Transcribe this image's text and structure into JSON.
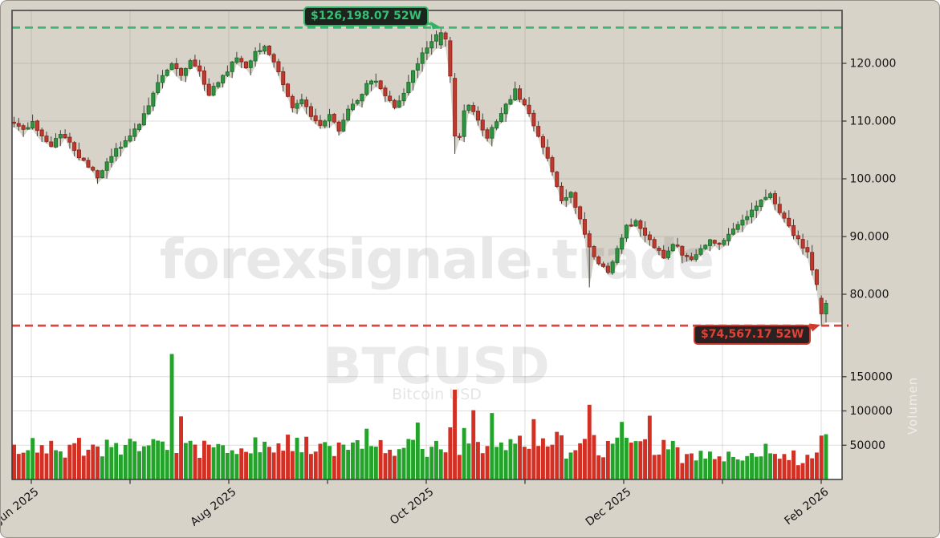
{
  "watermarks": {
    "main": "forexsignale.trade",
    "symbol": "BTCUSD",
    "subtitle": "Bitcoin USD",
    "side": "Volumen"
  },
  "chart_data": {
    "type": "candlestick",
    "symbol": "BTCUSD",
    "symbol_name": "Bitcoin USD",
    "timeframe": "daily",
    "n_candles": 176,
    "x_ticks": [
      "Jun 2025",
      "",
      "Aug 2025",
      "",
      "Oct 2025",
      "",
      "Dec 2025",
      "",
      "Feb 2026"
    ],
    "price_axis": {
      "ticks": [
        {
          "value": 120000,
          "label": "120.000"
        },
        {
          "value": 110000,
          "label": "110.000"
        },
        {
          "value": 100000,
          "label": "100.000"
        },
        {
          "value": 90000,
          "label": "90.000"
        },
        {
          "value": 80000,
          "label": "80.000"
        }
      ]
    },
    "volume_axis": {
      "ticks": [
        {
          "value": 150000,
          "label": "150000"
        },
        {
          "value": 100000,
          "label": "100000"
        },
        {
          "value": 50000,
          "label": "50000"
        }
      ],
      "side_label": "Volumen"
    },
    "levels": {
      "high_52w": {
        "value": 126198.07,
        "label": "$126,198.07 52W",
        "color": "#3bb872"
      },
      "low_52w": {
        "value": 74567.17,
        "label": "$74,567.17 52W",
        "color": "#dd453e"
      }
    },
    "close_anchors": [
      [
        0,
        109600
      ],
      [
        2,
        108300
      ],
      [
        4,
        109900
      ],
      [
        6,
        107500
      ],
      [
        8,
        105900
      ],
      [
        10,
        107600
      ],
      [
        12,
        106000
      ],
      [
        14,
        104000
      ],
      [
        16,
        102000
      ],
      [
        18,
        100400
      ],
      [
        20,
        103000
      ],
      [
        22,
        104900
      ],
      [
        24,
        106500
      ],
      [
        26,
        108300
      ],
      [
        28,
        111000
      ],
      [
        30,
        114500
      ],
      [
        32,
        118200
      ],
      [
        34,
        119800
      ],
      [
        36,
        118100
      ],
      [
        38,
        120600
      ],
      [
        40,
        118600
      ],
      [
        42,
        114500
      ],
      [
        44,
        116900
      ],
      [
        46,
        118800
      ],
      [
        48,
        121000
      ],
      [
        50,
        119100
      ],
      [
        52,
        121800
      ],
      [
        54,
        122900
      ],
      [
        56,
        120100
      ],
      [
        58,
        116500
      ],
      [
        60,
        112400
      ],
      [
        62,
        113900
      ],
      [
        64,
        111100
      ],
      [
        66,
        109300
      ],
      [
        68,
        111000
      ],
      [
        70,
        108100
      ],
      [
        72,
        111800
      ],
      [
        74,
        113600
      ],
      [
        76,
        116200
      ],
      [
        78,
        117000
      ],
      [
        80,
        114100
      ],
      [
        82,
        112500
      ],
      [
        84,
        115000
      ],
      [
        86,
        118400
      ],
      [
        88,
        121600
      ],
      [
        90,
        123900
      ],
      [
        92,
        125400
      ],
      [
        93,
        124100
      ],
      [
        94,
        117800
      ],
      [
        95,
        109500
      ],
      [
        96,
        107500
      ],
      [
        97,
        111500
      ],
      [
        98,
        112900
      ],
      [
        100,
        110200
      ],
      [
        102,
        107100
      ],
      [
        104,
        110000
      ],
      [
        106,
        112600
      ],
      [
        108,
        115300
      ],
      [
        110,
        112900
      ],
      [
        112,
        109500
      ],
      [
        114,
        105600
      ],
      [
        116,
        100900
      ],
      [
        118,
        96300
      ],
      [
        120,
        97700
      ],
      [
        122,
        92900
      ],
      [
        124,
        88400
      ],
      [
        126,
        85100
      ],
      [
        128,
        84000
      ],
      [
        130,
        87600
      ],
      [
        132,
        91900
      ],
      [
        134,
        92500
      ],
      [
        136,
        90300
      ],
      [
        138,
        88100
      ],
      [
        140,
        86500
      ],
      [
        142,
        88900
      ],
      [
        144,
        87100
      ],
      [
        146,
        85800
      ],
      [
        148,
        87800
      ],
      [
        150,
        89500
      ],
      [
        152,
        88600
      ],
      [
        154,
        90300
      ],
      [
        156,
        91800
      ],
      [
        158,
        93600
      ],
      [
        160,
        95400
      ],
      [
        162,
        97000
      ],
      [
        163,
        97600
      ],
      [
        164,
        95500
      ],
      [
        166,
        93100
      ],
      [
        168,
        90500
      ],
      [
        170,
        88300
      ],
      [
        171,
        87100
      ],
      [
        172,
        84500
      ],
      [
        173,
        81700
      ],
      [
        174,
        76900
      ],
      [
        175,
        78400
      ]
    ],
    "candle_overrides": {
      "92": {
        "open": 123200,
        "close": 125300,
        "high": 126198,
        "low": 122500
      },
      "94": {
        "open": 123900,
        "close": 117800
      },
      "95": {
        "open": 117400,
        "close": 107400,
        "low": 104300
      },
      "124": {
        "low": 81200
      },
      "173": {
        "close": 81700
      },
      "174": {
        "open": 79300,
        "close": 76600,
        "low": 74567,
        "high": 79800
      },
      "175": {
        "open": 76600,
        "close": 78400,
        "low": 75100,
        "high": 79000
      }
    },
    "volume_overrides": {
      "34": 183000,
      "36": 92000,
      "76": 74000,
      "87": 83000,
      "95": 131000,
      "99": 101000,
      "103": 97000,
      "112": 88000,
      "124": 109000,
      "131": 84000,
      "137": 93000,
      "162": 52000,
      "174": 64000,
      "175": 66000
    },
    "colors": {
      "up": "#2f9440",
      "up_edge": "#1d6b2a",
      "down": "#bf3a2e",
      "down_edge": "#8c241c",
      "wick": "#44423f",
      "vol_up": "#24a32b",
      "vol_down": "#d32f23",
      "background": "#d7d3c9",
      "plot_bg": "#ffffff",
      "grid": "#8c877c",
      "spine": "#3a3a3a"
    }
  }
}
